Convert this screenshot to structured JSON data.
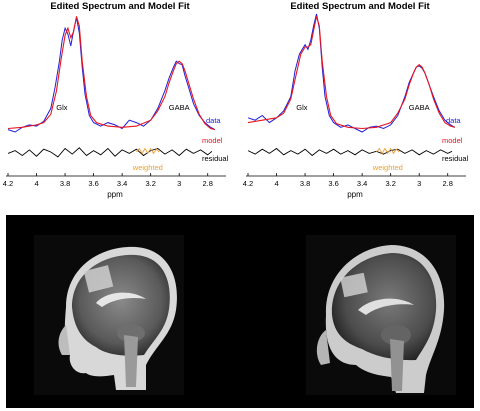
{
  "chart_data": [
    {
      "type": "line",
      "title": "Edited Spectrum and Model Fit",
      "xlabel": "ppm",
      "x_reversed": true,
      "xlim": [
        4.2,
        2.7
      ],
      "xticks": [
        "4.2",
        "4",
        "3.8",
        "3.6",
        "3.4",
        "3.2",
        "3",
        "2.8"
      ],
      "peak_labels": [
        {
          "text": "Glx",
          "x": 3.78
        },
        {
          "text": "GABA",
          "x": 3.0
        }
      ],
      "legend": {
        "data": "data",
        "model": "model",
        "residual": "residual",
        "weighted": "weighted"
      },
      "colors": {
        "data": "#1f1fd9",
        "model": "#e8141e",
        "residual": "#000000",
        "weighted": "#f0a030"
      },
      "series": [
        {
          "name": "data",
          "x": [
            4.2,
            4.15,
            4.1,
            4.05,
            4.0,
            3.95,
            3.9,
            3.87,
            3.84,
            3.82,
            3.8,
            3.78,
            3.76,
            3.74,
            3.72,
            3.7,
            3.68,
            3.66,
            3.63,
            3.6,
            3.55,
            3.5,
            3.45,
            3.4,
            3.35,
            3.3,
            3.25,
            3.2,
            3.15,
            3.1,
            3.07,
            3.04,
            3.02,
            3.0,
            2.98,
            2.96,
            2.93,
            2.9,
            2.86,
            2.82,
            2.78,
            2.75
          ],
          "y": [
            0.02,
            0.0,
            0.04,
            0.06,
            0.05,
            0.09,
            0.2,
            0.38,
            0.6,
            0.78,
            0.88,
            0.83,
            0.73,
            0.86,
            0.97,
            0.84,
            0.55,
            0.32,
            0.14,
            0.08,
            0.05,
            0.08,
            0.06,
            0.03,
            0.1,
            0.08,
            0.05,
            0.1,
            0.2,
            0.35,
            0.46,
            0.55,
            0.6,
            0.58,
            0.57,
            0.48,
            0.36,
            0.24,
            0.14,
            0.08,
            0.04,
            0.02
          ]
        },
        {
          "name": "model",
          "x": [
            4.2,
            4.1,
            4.0,
            3.95,
            3.9,
            3.86,
            3.83,
            3.8,
            3.78,
            3.76,
            3.74,
            3.72,
            3.7,
            3.68,
            3.65,
            3.62,
            3.58,
            3.5,
            3.4,
            3.3,
            3.2,
            3.15,
            3.1,
            3.07,
            3.04,
            3.02,
            3.0,
            2.98,
            2.96,
            2.93,
            2.9,
            2.86,
            2.82,
            2.78,
            2.75
          ],
          "y": [
            0.03,
            0.04,
            0.06,
            0.08,
            0.15,
            0.35,
            0.6,
            0.82,
            0.88,
            0.8,
            0.85,
            0.98,
            0.9,
            0.6,
            0.3,
            0.14,
            0.08,
            0.05,
            0.04,
            0.05,
            0.1,
            0.18,
            0.3,
            0.42,
            0.52,
            0.58,
            0.6,
            0.58,
            0.52,
            0.4,
            0.28,
            0.15,
            0.07,
            0.03,
            0.02
          ]
        },
        {
          "name": "residual",
          "x": [
            4.2,
            4.15,
            4.1,
            4.05,
            4.0,
            3.95,
            3.9,
            3.85,
            3.8,
            3.75,
            3.7,
            3.65,
            3.6,
            3.55,
            3.5,
            3.45,
            3.4,
            3.35,
            3.3,
            3.25,
            3.2,
            3.15,
            3.1,
            3.05,
            3.0,
            2.95,
            2.9,
            2.85,
            2.8,
            2.77
          ],
          "y": [
            -0.02,
            0.02,
            -0.05,
            0.03,
            -0.06,
            0.04,
            0.0,
            -0.07,
            0.05,
            -0.03,
            0.06,
            -0.05,
            0.02,
            -0.04,
            0.05,
            -0.06,
            0.03,
            -0.02,
            0.04,
            -0.05,
            0.02,
            0.05,
            -0.03,
            0.03,
            -0.05,
            0.04,
            -0.02,
            0.03,
            -0.04,
            0.01
          ]
        },
        {
          "name": "weighted",
          "x": [
            3.3,
            3.28,
            3.26,
            3.24,
            3.22,
            3.2,
            3.18,
            3.16,
            3.14
          ],
          "y": [
            0.0,
            0.05,
            -0.02,
            0.05,
            -0.02,
            0.05,
            -0.02,
            0.04,
            0.0
          ]
        }
      ]
    },
    {
      "type": "line",
      "title": "Edited Spectrum and Model Fit",
      "xlabel": "ppm",
      "x_reversed": true,
      "xlim": [
        4.2,
        2.7
      ],
      "xticks": [
        "4.2",
        "4",
        "3.8",
        "3.6",
        "3.4",
        "3.2",
        "3",
        "2.8"
      ],
      "peak_labels": [
        {
          "text": "Glx",
          "x": 3.78
        },
        {
          "text": "GABA",
          "x": 3.0
        }
      ],
      "legend": {
        "data": "data",
        "model": "model",
        "residual": "residual",
        "weighted": "weighted"
      },
      "colors": {
        "data": "#1f1fd9",
        "model": "#e8141e",
        "residual": "#000000",
        "weighted": "#f0a030"
      },
      "series": [
        {
          "name": "data",
          "x": [
            4.2,
            4.15,
            4.1,
            4.05,
            4.0,
            3.95,
            3.9,
            3.87,
            3.84,
            3.82,
            3.8,
            3.78,
            3.76,
            3.74,
            3.72,
            3.7,
            3.68,
            3.66,
            3.63,
            3.6,
            3.55,
            3.5,
            3.45,
            3.4,
            3.35,
            3.3,
            3.25,
            3.2,
            3.15,
            3.1,
            3.07,
            3.04,
            3.02,
            3.0,
            2.98,
            2.96,
            2.93,
            2.9,
            2.86,
            2.82,
            2.78,
            2.75
          ],
          "y": [
            0.12,
            0.1,
            0.14,
            0.08,
            0.12,
            0.18,
            0.3,
            0.52,
            0.66,
            0.7,
            0.74,
            0.7,
            0.78,
            0.9,
            1.0,
            0.88,
            0.55,
            0.3,
            0.14,
            0.08,
            0.04,
            0.06,
            0.03,
            0.0,
            0.04,
            0.05,
            0.03,
            0.06,
            0.14,
            0.3,
            0.42,
            0.5,
            0.55,
            0.56,
            0.54,
            0.5,
            0.4,
            0.3,
            0.18,
            0.1,
            0.06,
            0.04
          ]
        },
        {
          "name": "model",
          "x": [
            4.2,
            4.1,
            4.0,
            3.95,
            3.9,
            3.86,
            3.83,
            3.8,
            3.78,
            3.76,
            3.74,
            3.72,
            3.7,
            3.68,
            3.65,
            3.62,
            3.58,
            3.5,
            3.4,
            3.3,
            3.2,
            3.15,
            3.1,
            3.07,
            3.04,
            3.02,
            3.0,
            2.98,
            2.96,
            2.93,
            2.9,
            2.86,
            2.82,
            2.78,
            2.75
          ],
          "y": [
            0.08,
            0.1,
            0.12,
            0.16,
            0.28,
            0.5,
            0.66,
            0.72,
            0.72,
            0.74,
            0.86,
            0.98,
            0.9,
            0.6,
            0.3,
            0.14,
            0.07,
            0.04,
            0.03,
            0.04,
            0.08,
            0.16,
            0.28,
            0.4,
            0.5,
            0.55,
            0.57,
            0.55,
            0.5,
            0.4,
            0.28,
            0.16,
            0.08,
            0.05,
            0.04
          ]
        },
        {
          "name": "residual",
          "x": [
            4.2,
            4.15,
            4.1,
            4.05,
            4.0,
            3.95,
            3.9,
            3.85,
            3.8,
            3.75,
            3.7,
            3.65,
            3.6,
            3.55,
            3.5,
            3.45,
            3.4,
            3.35,
            3.3,
            3.25,
            3.2,
            3.15,
            3.1,
            3.05,
            3.0,
            2.95,
            2.9,
            2.85,
            2.8,
            2.77
          ],
          "y": [
            0.02,
            -0.03,
            0.04,
            -0.02,
            0.05,
            -0.04,
            0.02,
            -0.03,
            0.04,
            -0.05,
            0.03,
            -0.02,
            0.04,
            -0.03,
            0.02,
            -0.04,
            0.03,
            -0.02,
            0.01,
            -0.03,
            0.02,
            0.04,
            -0.02,
            0.03,
            -0.04,
            0.02,
            -0.03,
            0.03,
            -0.02,
            0.01
          ]
        },
        {
          "name": "weighted",
          "x": [
            3.3,
            3.28,
            3.26,
            3.24,
            3.22,
            3.2,
            3.18,
            3.16,
            3.14
          ],
          "y": [
            0.0,
            0.05,
            -0.02,
            0.05,
            -0.02,
            0.05,
            -0.02,
            0.04,
            0.0
          ]
        }
      ]
    }
  ]
}
